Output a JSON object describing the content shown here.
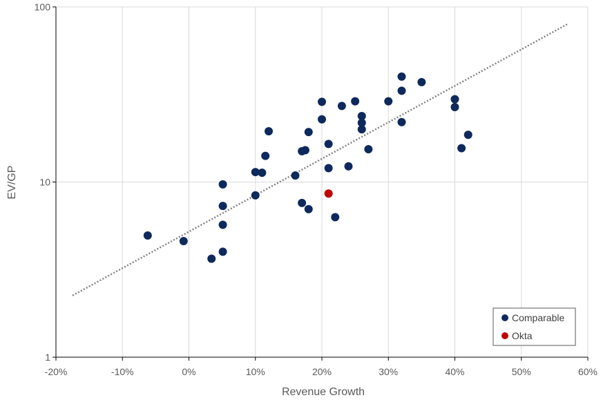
{
  "chart_data": {
    "type": "scatter",
    "title": "",
    "xlabel": "Revenue Growth",
    "ylabel": "EV/GP",
    "xlim": [
      -0.2,
      0.6
    ],
    "xticks": [
      -0.2,
      -0.1,
      0,
      0.1,
      0.2,
      0.3,
      0.4,
      0.5,
      0.6
    ],
    "xtick_labels": [
      "-20%",
      "-10%",
      "0%",
      "10%",
      "20%",
      "30%",
      "40%",
      "50%",
      "60%"
    ],
    "ylim": [
      1,
      100
    ],
    "yscale": "log",
    "yticks": [
      1,
      10,
      100
    ],
    "ytick_labels": [
      "1",
      "10",
      "100"
    ],
    "grid": true,
    "legend_position": "bottom-right",
    "series": [
      {
        "name": "Comparable",
        "color": "#0e2a5c",
        "points": [
          {
            "x": -0.062,
            "y": 4.95
          },
          {
            "x": -0.008,
            "y": 4.6
          },
          {
            "x": 0.034,
            "y": 3.65
          },
          {
            "x": 0.051,
            "y": 4.0
          },
          {
            "x": 0.051,
            "y": 5.7
          },
          {
            "x": 0.051,
            "y": 7.3
          },
          {
            "x": 0.051,
            "y": 9.7
          },
          {
            "x": 0.1,
            "y": 8.4
          },
          {
            "x": 0.1,
            "y": 11.4
          },
          {
            "x": 0.11,
            "y": 11.3
          },
          {
            "x": 0.115,
            "y": 14.1
          },
          {
            "x": 0.12,
            "y": 19.5
          },
          {
            "x": 0.16,
            "y": 10.9
          },
          {
            "x": 0.17,
            "y": 7.6
          },
          {
            "x": 0.17,
            "y": 15.0
          },
          {
            "x": 0.175,
            "y": 15.2
          },
          {
            "x": 0.18,
            "y": 7.0
          },
          {
            "x": 0.18,
            "y": 19.3
          },
          {
            "x": 0.2,
            "y": 22.8
          },
          {
            "x": 0.2,
            "y": 28.7
          },
          {
            "x": 0.21,
            "y": 12.0
          },
          {
            "x": 0.21,
            "y": 16.5
          },
          {
            "x": 0.22,
            "y": 6.3
          },
          {
            "x": 0.23,
            "y": 27.2
          },
          {
            "x": 0.24,
            "y": 12.3
          },
          {
            "x": 0.25,
            "y": 28.9
          },
          {
            "x": 0.26,
            "y": 20.0
          },
          {
            "x": 0.26,
            "y": 21.8
          },
          {
            "x": 0.26,
            "y": 23.8
          },
          {
            "x": 0.27,
            "y": 15.4
          },
          {
            "x": 0.3,
            "y": 28.9
          },
          {
            "x": 0.32,
            "y": 22.0
          },
          {
            "x": 0.32,
            "y": 33.2
          },
          {
            "x": 0.32,
            "y": 40.0
          },
          {
            "x": 0.35,
            "y": 37.2
          },
          {
            "x": 0.4,
            "y": 26.8
          },
          {
            "x": 0.4,
            "y": 29.7
          },
          {
            "x": 0.41,
            "y": 15.6
          },
          {
            "x": 0.42,
            "y": 18.6
          }
        ]
      },
      {
        "name": "Okta",
        "color": "#c00000",
        "points": [
          {
            "x": 0.21,
            "y": 8.6
          }
        ]
      }
    ],
    "trendline": {
      "type": "exponential",
      "style": "dotted",
      "color": "#808080",
      "from": {
        "x": -0.175,
        "y": 2.25
      },
      "to": {
        "x": 0.57,
        "y": 80
      }
    }
  }
}
